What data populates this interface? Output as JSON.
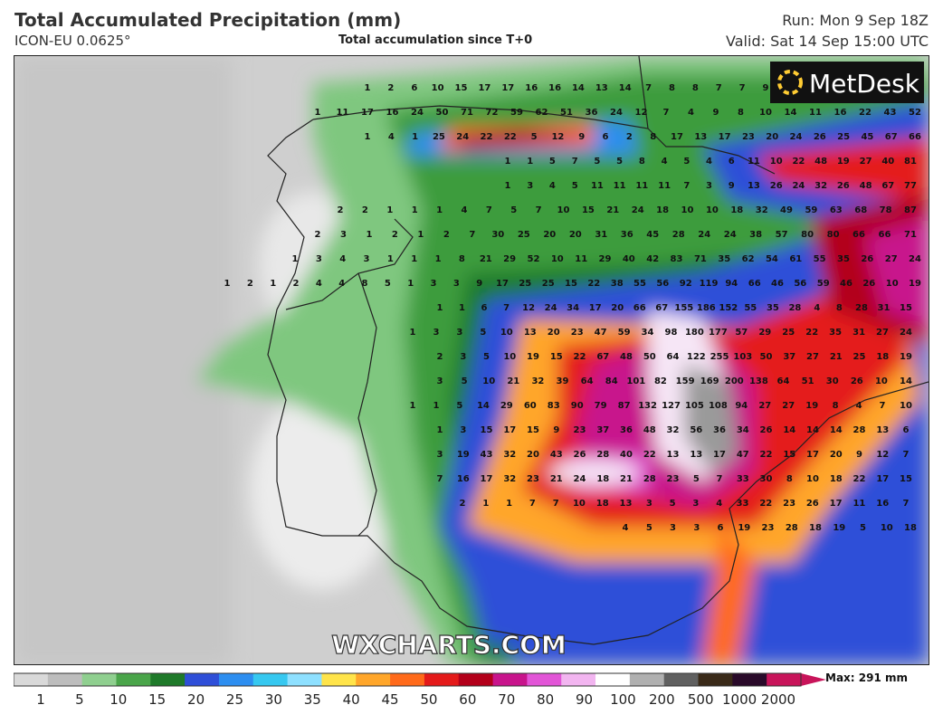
{
  "header": {
    "title": "Total Accumulated Precipitation (mm)",
    "model": "ICON-EU 0.0625°",
    "subtitle": "Total accumulation since T+0",
    "run": "Run: Mon 9 Sep 18Z",
    "valid": "Valid: Sat 14 Sep 15:00 UTC"
  },
  "logo": {
    "text": "MetDesk"
  },
  "watermark": {
    "text": "WXCHARTS.COM"
  },
  "colorbar": {
    "max_label": "Max: 291 mm",
    "ticks": [
      "1",
      "5",
      "10",
      "15",
      "20",
      "25",
      "30",
      "35",
      "40",
      "45",
      "50",
      "60",
      "70",
      "80",
      "90",
      "100",
      "200",
      "500",
      "1000",
      "2000"
    ],
    "stops": [
      "#d9d9d9",
      "#bdbdbd",
      "#8fcf8f",
      "#4aa54a",
      "#1f7a2a",
      "#2f4fd8",
      "#2d8ef0",
      "#36c8f0",
      "#8ee0ff",
      "#ffe44a",
      "#ffa62a",
      "#ff6a1a",
      "#e41a1a",
      "#b3001a",
      "#c8148c",
      "#e255d7",
      "#f2b5f0",
      "#ffffff",
      "#b0b0b0",
      "#606060",
      "#3a2a18",
      "#2a0a2a",
      "#c8145a"
    ]
  },
  "map": {
    "rows": [
      [
        "1",
        "2",
        "6",
        "10",
        "15",
        "17",
        "17",
        "16",
        "16",
        "14",
        "13",
        "14",
        "7",
        "8",
        "8",
        "7",
        "7",
        "9"
      ],
      [
        "1",
        "11",
        "17",
        "16",
        "24",
        "50",
        "71",
        "72",
        "59",
        "62",
        "51",
        "36",
        "24",
        "12",
        "7",
        "4",
        "9",
        "8",
        "10",
        "14",
        "11",
        "16",
        "22",
        "43",
        "52"
      ],
      [
        "1",
        "4",
        "1",
        "25",
        "24",
        "22",
        "22",
        "5",
        "12",
        "9",
        "6",
        "2",
        "8",
        "17",
        "13",
        "17",
        "23",
        "20",
        "24",
        "26",
        "25",
        "45",
        "67",
        "66"
      ],
      [
        "1",
        "1",
        "5",
        "7",
        "5",
        "5",
        "8",
        "4",
        "5",
        "4",
        "6",
        "11",
        "10",
        "22",
        "48",
        "19",
        "27",
        "40",
        "81"
      ],
      [
        "1",
        "3",
        "4",
        "5",
        "11",
        "11",
        "11",
        "11",
        "7",
        "3",
        "9",
        "13",
        "26",
        "24",
        "32",
        "26",
        "48",
        "67",
        "77"
      ],
      [
        "2",
        "2",
        "1",
        "1",
        "1",
        "4",
        "7",
        "5",
        "7",
        "10",
        "15",
        "21",
        "24",
        "18",
        "10",
        "10",
        "18",
        "32",
        "49",
        "59",
        "63",
        "68",
        "78",
        "87"
      ],
      [
        "2",
        "3",
        "1",
        "2",
        "1",
        "2",
        "7",
        "30",
        "25",
        "20",
        "20",
        "31",
        "36",
        "45",
        "28",
        "24",
        "24",
        "38",
        "57",
        "80",
        "80",
        "66",
        "66",
        "71"
      ],
      [
        "1",
        "3",
        "4",
        "3",
        "1",
        "1",
        "1",
        "8",
        "21",
        "29",
        "52",
        "10",
        "11",
        "29",
        "40",
        "42",
        "83",
        "71",
        "35",
        "62",
        "54",
        "61",
        "55",
        "35",
        "26",
        "27",
        "24"
      ],
      [
        "1",
        "2",
        "1",
        "2",
        "4",
        "4",
        "8",
        "5",
        "1",
        "3",
        "3",
        "9",
        "17",
        "25",
        "25",
        "15",
        "22",
        "38",
        "55",
        "56",
        "92",
        "119",
        "94",
        "66",
        "46",
        "56",
        "59",
        "46",
        "26",
        "10",
        "19"
      ],
      [
        "1",
        "1",
        "6",
        "7",
        "12",
        "24",
        "34",
        "17",
        "20",
        "66",
        "67",
        "155",
        "186",
        "152",
        "55",
        "35",
        "28",
        "4",
        "8",
        "28",
        "31",
        "15"
      ],
      [
        "1",
        "3",
        "3",
        "5",
        "10",
        "13",
        "20",
        "23",
        "47",
        "59",
        "34",
        "98",
        "180",
        "177",
        "57",
        "29",
        "25",
        "22",
        "35",
        "31",
        "27",
        "24"
      ],
      [
        "2",
        "3",
        "5",
        "10",
        "19",
        "15",
        "22",
        "67",
        "48",
        "50",
        "64",
        "122",
        "255",
        "103",
        "50",
        "37",
        "27",
        "21",
        "25",
        "18",
        "19"
      ],
      [
        "3",
        "5",
        "10",
        "21",
        "32",
        "39",
        "64",
        "84",
        "101",
        "82",
        "159",
        "169",
        "200",
        "138",
        "64",
        "51",
        "30",
        "26",
        "10",
        "14"
      ],
      [
        "1",
        "1",
        "5",
        "14",
        "29",
        "60",
        "83",
        "90",
        "79",
        "87",
        "132",
        "127",
        "105",
        "108",
        "94",
        "27",
        "27",
        "19",
        "8",
        "4",
        "7",
        "10"
      ],
      [
        "1",
        "3",
        "15",
        "17",
        "15",
        "9",
        "23",
        "37",
        "36",
        "48",
        "32",
        "56",
        "36",
        "34",
        "26",
        "14",
        "14",
        "14",
        "28",
        "13",
        "6"
      ],
      [
        "3",
        "19",
        "43",
        "32",
        "20",
        "43",
        "26",
        "28",
        "40",
        "22",
        "13",
        "13",
        "17",
        "47",
        "22",
        "15",
        "17",
        "20",
        "9",
        "12",
        "7"
      ],
      [
        "7",
        "16",
        "17",
        "32",
        "23",
        "21",
        "24",
        "18",
        "21",
        "28",
        "23",
        "5",
        "7",
        "33",
        "30",
        "8",
        "10",
        "18",
        "22",
        "17",
        "15"
      ],
      [
        "2",
        "1",
        "1",
        "7",
        "7",
        "10",
        "18",
        "13",
        "3",
        "5",
        "3",
        "4",
        "33",
        "22",
        "23",
        "26",
        "17",
        "11",
        "16",
        "7"
      ],
      [
        "4",
        "5",
        "3",
        "3",
        "6",
        "19",
        "23",
        "28",
        "18",
        "19",
        "5",
        "10",
        "18"
      ]
    ]
  }
}
